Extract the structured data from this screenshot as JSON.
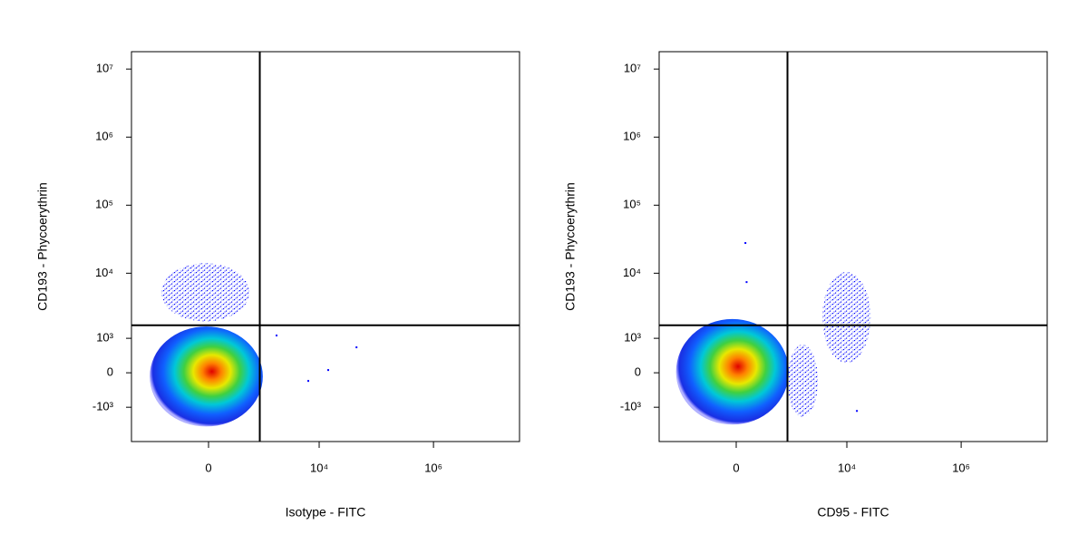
{
  "chart_data": [
    {
      "type": "scatter",
      "xlabel": "Isotype - FITC",
      "ylabel": "CD193 - Phycoerythrin",
      "xscale": "biexponential",
      "yscale": "biexponential",
      "xlim": [
        -2580,
        32000000
      ],
      "ylim": [
        -3500,
        18000000
      ],
      "xticks": [
        0,
        {
          "value": 10000,
          "label": "10⁴"
        },
        {
          "value": 1000000,
          "label": "10⁶"
        }
      ],
      "yticks": [
        {
          "value": 10000000,
          "label": "10⁷"
        },
        {
          "value": 1000000,
          "label": "10⁶"
        },
        {
          "value": 100000,
          "label": "10⁵"
        },
        {
          "value": 10000,
          "label": "10⁴"
        },
        {
          "value": 1000,
          "label": "10³"
        },
        0,
        {
          "value": -1000,
          "label": "-10³"
        }
      ],
      "quadrant": {
        "x": 900,
        "y": 1650
      },
      "populations": [
        {
          "x_range": [
            -1230,
            1020
          ],
          "y_range": [
            -2070,
            1580
          ],
          "dense": true
        },
        {
          "x_range": [
            -760,
            580
          ],
          "y_range": [
            1900,
            14000
          ],
          "dense": false
        }
      ],
      "x": [
        6450,
        14400,
        45000,
        1790
      ],
      "values": [
        -193,
        64,
        670,
        1120
      ]
    },
    {
      "type": "scatter",
      "xlabel": "CD95 - FITC",
      "ylabel": "CD193 - Phycoerythrin",
      "xscale": "biexponential",
      "yscale": "biexponential",
      "xlim": [
        -2580,
        32000000
      ],
      "ylim": [
        -3500,
        18000000
      ],
      "xticks": [
        0,
        {
          "value": 10000,
          "label": "10⁴"
        },
        {
          "value": 1000000,
          "label": "10⁶"
        }
      ],
      "yticks": [
        {
          "value": 10000000,
          "label": "10⁷"
        },
        {
          "value": 1000000,
          "label": "10⁶"
        },
        {
          "value": 100000,
          "label": "10⁵"
        },
        {
          "value": 10000,
          "label": "10⁴"
        },
        {
          "value": 1000,
          "label": "10³"
        },
        0,
        {
          "value": -1000,
          "label": "-10³"
        }
      ],
      "quadrant": {
        "x": 900,
        "y": 1650
      },
      "populations": [
        {
          "x_range": [
            -1300,
            950
          ],
          "y_range": [
            -1930,
            2070
          ],
          "dense": true
        },
        {
          "x_range": [
            900,
            3110
          ],
          "y_range": [
            -1470,
            760
          ],
          "dense": false
        },
        {
          "x_range": [
            3720,
            26000
          ],
          "y_range": [
            240,
            10400
          ],
          "dense": false
        }
      ],
      "x": [
        88,
        100,
        15000
      ],
      "values": [
        27800,
        7400,
        -1160
      ]
    }
  ]
}
